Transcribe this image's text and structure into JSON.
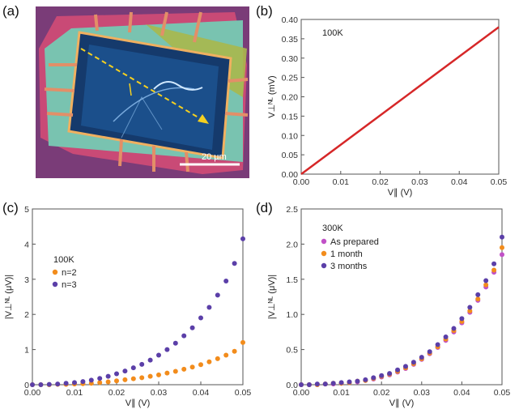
{
  "panels": {
    "a": {
      "label": "(a)",
      "scale_bar": "20 µm"
    },
    "b": {
      "label": "(b)"
    },
    "c": {
      "label": "(c)"
    },
    "d": {
      "label": "(d)"
    }
  },
  "colors": {
    "red": "#d62728",
    "orange": "#f28c1c",
    "purple": "#5b3fa8",
    "magenta": "#c151c7",
    "axis": "#555555"
  },
  "chart_data": [
    {
      "panel": "b",
      "type": "line",
      "annotation": "100K",
      "xlabel": "V∥ (V)",
      "ylabel": "V⊥ᴺᴸ (mV)",
      "xlim": [
        0,
        0.05
      ],
      "ylim": [
        0,
        0.4
      ],
      "xticks": [
        "0.00",
        "0.01",
        "0.02",
        "0.03",
        "0.04",
        "0.05"
      ],
      "yticks": [
        "0.00",
        "0.05",
        "0.10",
        "0.15",
        "0.20",
        "0.25",
        "0.30",
        "0.35",
        "0.40"
      ],
      "series": [
        {
          "name": "100K",
          "x": [
            0,
            0.05
          ],
          "y": [
            0,
            0.38
          ]
        }
      ]
    },
    {
      "panel": "c",
      "type": "scatter",
      "annotation": "100K",
      "xlabel": "V∥ (V)",
      "ylabel": "|V⊥ᴺᴸ (μV)|",
      "xlim": [
        0,
        0.05
      ],
      "ylim": [
        0,
        5
      ],
      "xticks": [
        "0.00",
        "0.01",
        "0.02",
        "0.03",
        "0.04",
        "0.05"
      ],
      "yticks": [
        "0",
        "1",
        "2",
        "3",
        "4",
        "5"
      ],
      "series": [
        {
          "name": "n=2",
          "x": [
            0.0,
            0.002,
            0.004,
            0.006,
            0.008,
            0.01,
            0.012,
            0.014,
            0.016,
            0.018,
            0.02,
            0.022,
            0.024,
            0.026,
            0.028,
            0.03,
            0.032,
            0.034,
            0.036,
            0.038,
            0.04,
            0.042,
            0.044,
            0.046,
            0.048,
            0.05
          ],
          "y": [
            0.0,
            0.0,
            0.0,
            0.01,
            0.01,
            0.02,
            0.03,
            0.04,
            0.06,
            0.08,
            0.11,
            0.14,
            0.17,
            0.2,
            0.24,
            0.28,
            0.33,
            0.38,
            0.44,
            0.5,
            0.57,
            0.65,
            0.74,
            0.84,
            0.95,
            1.2
          ]
        },
        {
          "name": "n=3",
          "x": [
            0.0,
            0.002,
            0.004,
            0.006,
            0.008,
            0.01,
            0.012,
            0.014,
            0.016,
            0.018,
            0.02,
            0.022,
            0.024,
            0.026,
            0.028,
            0.03,
            0.032,
            0.034,
            0.036,
            0.038,
            0.04,
            0.042,
            0.044,
            0.046,
            0.048,
            0.05
          ],
          "y": [
            0.0,
            0.0,
            0.01,
            0.02,
            0.04,
            0.06,
            0.09,
            0.13,
            0.18,
            0.24,
            0.31,
            0.39,
            0.48,
            0.58,
            0.7,
            0.84,
            1.0,
            1.18,
            1.39,
            1.62,
            1.9,
            2.2,
            2.55,
            2.95,
            3.45,
            4.15
          ]
        }
      ],
      "legend": [
        "n=2",
        "n=3"
      ]
    },
    {
      "panel": "d",
      "type": "scatter",
      "annotation": "300K",
      "xlabel": "V∥ (V)",
      "ylabel": "|V⊥ᴺᴸ (μV)|",
      "xlim": [
        0,
        0.05
      ],
      "ylim": [
        0,
        2.5
      ],
      "xticks": [
        "0.00",
        "0.01",
        "0.02",
        "0.03",
        "0.04",
        "0.05"
      ],
      "yticks": [
        "0.0",
        "0.5",
        "1.0",
        "1.5",
        "2.0",
        "2.5"
      ],
      "series": [
        {
          "name": "As prepared",
          "x": [
            0.0,
            0.002,
            0.004,
            0.006,
            0.008,
            0.01,
            0.012,
            0.014,
            0.016,
            0.018,
            0.02,
            0.022,
            0.024,
            0.026,
            0.028,
            0.03,
            0.032,
            0.034,
            0.036,
            0.038,
            0.04,
            0.042,
            0.044,
            0.046,
            0.048,
            0.05
          ],
          "y": [
            0.0,
            0.0,
            0.0,
            0.01,
            0.01,
            0.02,
            0.03,
            0.04,
            0.06,
            0.08,
            0.11,
            0.14,
            0.18,
            0.23,
            0.29,
            0.36,
            0.44,
            0.53,
            0.63,
            0.75,
            0.88,
            1.03,
            1.2,
            1.39,
            1.6,
            1.85
          ]
        },
        {
          "name": "1 month",
          "x": [
            0.0,
            0.002,
            0.004,
            0.006,
            0.008,
            0.01,
            0.012,
            0.014,
            0.016,
            0.018,
            0.02,
            0.022,
            0.024,
            0.026,
            0.028,
            0.03,
            0.032,
            0.034,
            0.036,
            0.038,
            0.04,
            0.042,
            0.044,
            0.046,
            0.048,
            0.05
          ],
          "y": [
            0.0,
            0.0,
            0.0,
            0.01,
            0.02,
            0.02,
            0.03,
            0.05,
            0.06,
            0.09,
            0.12,
            0.15,
            0.19,
            0.24,
            0.3,
            0.37,
            0.45,
            0.54,
            0.65,
            0.77,
            0.9,
            1.05,
            1.22,
            1.42,
            1.63,
            1.95
          ]
        },
        {
          "name": "3 months",
          "x": [
            0.0,
            0.002,
            0.004,
            0.006,
            0.008,
            0.01,
            0.012,
            0.014,
            0.016,
            0.018,
            0.02,
            0.022,
            0.024,
            0.026,
            0.028,
            0.03,
            0.032,
            0.034,
            0.036,
            0.038,
            0.04,
            0.042,
            0.044,
            0.046,
            0.048,
            0.05
          ],
          "y": [
            0.0,
            0.0,
            0.01,
            0.01,
            0.02,
            0.03,
            0.04,
            0.05,
            0.07,
            0.1,
            0.13,
            0.16,
            0.21,
            0.26,
            0.32,
            0.39,
            0.47,
            0.57,
            0.68,
            0.8,
            0.94,
            1.1,
            1.28,
            1.48,
            1.72,
            2.1
          ]
        }
      ],
      "legend": [
        "As prepared",
        "1 month",
        "3 months"
      ]
    }
  ]
}
